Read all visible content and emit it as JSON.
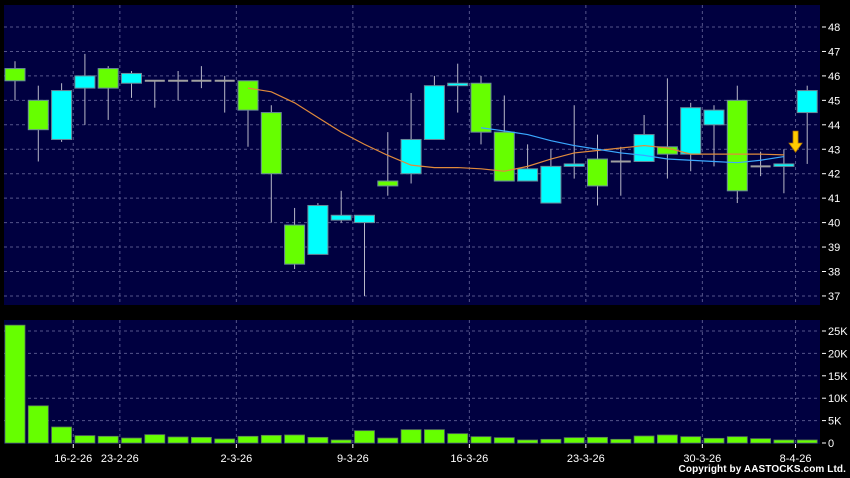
{
  "chart_data": [
    {
      "type": "candlestick",
      "panel": "price",
      "ylim": [
        36.7,
        48.9
      ],
      "y_ticks": [
        "37",
        "38",
        "39",
        "40",
        "41",
        "42",
        "43",
        "44",
        "45",
        "46",
        "47",
        "48"
      ],
      "grid": true,
      "colors": {
        "up": "#00ffff",
        "down": "#66ff00",
        "flat": "#a0a0a0",
        "background": "#000040",
        "grid": "#55558a",
        "ma_orange": "#e08a3c",
        "ma_blue": "#3aa8ff",
        "arrow": "#ffcc00"
      },
      "candles": [
        {
          "o": 46.3,
          "h": 46.6,
          "l": 45.0,
          "c": 45.8
        },
        {
          "o": 45.0,
          "h": 45.6,
          "l": 42.5,
          "c": 43.8
        },
        {
          "o": 43.4,
          "h": 45.7,
          "l": 43.3,
          "c": 45.4
        },
        {
          "o": 45.5,
          "h": 46.9,
          "l": 44.0,
          "c": 46.0
        },
        {
          "o": 46.3,
          "h": 46.4,
          "l": 44.2,
          "c": 45.5
        },
        {
          "o": 45.7,
          "h": 46.2,
          "l": 45.1,
          "c": 46.1
        },
        {
          "o": 45.8,
          "h": 45.8,
          "l": 44.7,
          "c": 45.8
        },
        {
          "o": 45.8,
          "h": 46.2,
          "l": 45.0,
          "c": 45.8
        },
        {
          "o": 45.8,
          "h": 46.4,
          "l": 45.5,
          "c": 45.8
        },
        {
          "o": 45.8,
          "h": 46.0,
          "l": 44.5,
          "c": 45.8
        },
        {
          "o": 45.8,
          "h": 45.8,
          "l": 43.1,
          "c": 44.6
        },
        {
          "o": 44.5,
          "h": 44.8,
          "l": 40.0,
          "c": 42.0
        },
        {
          "o": 39.9,
          "h": 40.6,
          "l": 38.1,
          "c": 38.3
        },
        {
          "o": 38.7,
          "h": 40.8,
          "l": 38.7,
          "c": 40.7
        },
        {
          "o": 40.1,
          "h": 41.3,
          "l": 40.0,
          "c": 40.3
        },
        {
          "o": 40.0,
          "h": 40.3,
          "l": 37.0,
          "c": 40.3
        },
        {
          "o": 41.7,
          "h": 43.7,
          "l": 41.1,
          "c": 41.5
        },
        {
          "o": 42.0,
          "h": 45.3,
          "l": 41.6,
          "c": 43.4
        },
        {
          "o": 43.4,
          "h": 46.0,
          "l": 43.4,
          "c": 45.6
        },
        {
          "o": 45.6,
          "h": 46.5,
          "l": 44.5,
          "c": 45.7
        },
        {
          "o": 45.7,
          "h": 46.0,
          "l": 43.2,
          "c": 43.7
        },
        {
          "o": 43.7,
          "h": 45.2,
          "l": 41.7,
          "c": 41.7
        },
        {
          "o": 41.7,
          "h": 43.2,
          "l": 41.7,
          "c": 42.2
        },
        {
          "o": 40.8,
          "h": 43.0,
          "l": 40.8,
          "c": 42.3
        },
        {
          "o": 42.3,
          "h": 44.8,
          "l": 41.8,
          "c": 42.4
        },
        {
          "o": 42.6,
          "h": 43.6,
          "l": 40.7,
          "c": 41.5
        },
        {
          "o": 42.5,
          "h": 43.1,
          "l": 41.1,
          "c": 42.5
        },
        {
          "o": 42.5,
          "h": 44.4,
          "l": 42.5,
          "c": 43.6
        },
        {
          "o": 43.1,
          "h": 45.9,
          "l": 41.8,
          "c": 42.8
        },
        {
          "o": 42.8,
          "h": 44.9,
          "l": 42.1,
          "c": 44.7
        },
        {
          "o": 44.0,
          "h": 44.8,
          "l": 42.3,
          "c": 44.6
        },
        {
          "o": 45.0,
          "h": 45.6,
          "l": 40.8,
          "c": 41.3
        },
        {
          "o": 42.3,
          "h": 42.9,
          "l": 41.9,
          "c": 42.3
        },
        {
          "o": 42.3,
          "h": 43.0,
          "l": 41.2,
          "c": 42.4
        },
        {
          "o": 44.5,
          "h": 45.6,
          "l": 42.4,
          "c": 45.4
        }
      ],
      "ma_orange": [
        null,
        null,
        null,
        null,
        null,
        null,
        null,
        null,
        null,
        null,
        45.5,
        45.35,
        44.9,
        44.3,
        43.7,
        43.2,
        42.75,
        42.35,
        42.25,
        42.25,
        42.2,
        42.1,
        42.3,
        42.6,
        42.85,
        42.95,
        43.05,
        43.15,
        43.05,
        42.8,
        42.8,
        42.8,
        42.8,
        42.77,
        null
      ],
      "ma_blue": [
        null,
        null,
        null,
        null,
        null,
        null,
        null,
        null,
        null,
        null,
        null,
        null,
        null,
        null,
        null,
        null,
        null,
        null,
        null,
        null,
        43.88,
        43.75,
        43.6,
        43.35,
        43.15,
        43.0,
        42.85,
        42.75,
        42.6,
        42.55,
        42.5,
        42.45,
        42.55,
        42.7,
        null
      ],
      "marker": {
        "type": "down-arrow",
        "at_index": 33.5,
        "price": 42.8
      }
    },
    {
      "type": "bar",
      "panel": "volume",
      "ylim": [
        0,
        27500
      ],
      "y_ticks": [
        "0",
        "5K",
        "10K",
        "15K",
        "20K",
        "25K"
      ],
      "y_tick_values": [
        0,
        5000,
        10000,
        15000,
        20000,
        25000
      ],
      "grid": true,
      "values": [
        26300,
        8300,
        3570,
        1640,
        1490,
        1100,
        1860,
        1340,
        1260,
        900,
        1490,
        1710,
        1790,
        1260,
        670,
        2750,
        1100,
        2980,
        2980,
        2080,
        1410,
        1190,
        670,
        820,
        1190,
        1260,
        820,
        1560,
        1790,
        1410,
        1040,
        1410,
        970,
        670,
        670
      ],
      "color": "#66ff00"
    }
  ],
  "x_axis": {
    "labels": [
      {
        "text": "16-2-26",
        "boundary": 3
      },
      {
        "text": "23-2-26",
        "boundary": 5
      },
      {
        "text": "2-3-26",
        "boundary": 10
      },
      {
        "text": "9-3-26",
        "boundary": 15
      },
      {
        "text": "16-3-26",
        "boundary": 20
      },
      {
        "text": "23-3-26",
        "boundary": 25
      },
      {
        "text": "30-3-26",
        "boundary": 30
      },
      {
        "text": "8-4-26",
        "boundary": 34
      }
    ]
  },
  "copyright": "Copyright by AASTOCKS.com Ltd."
}
